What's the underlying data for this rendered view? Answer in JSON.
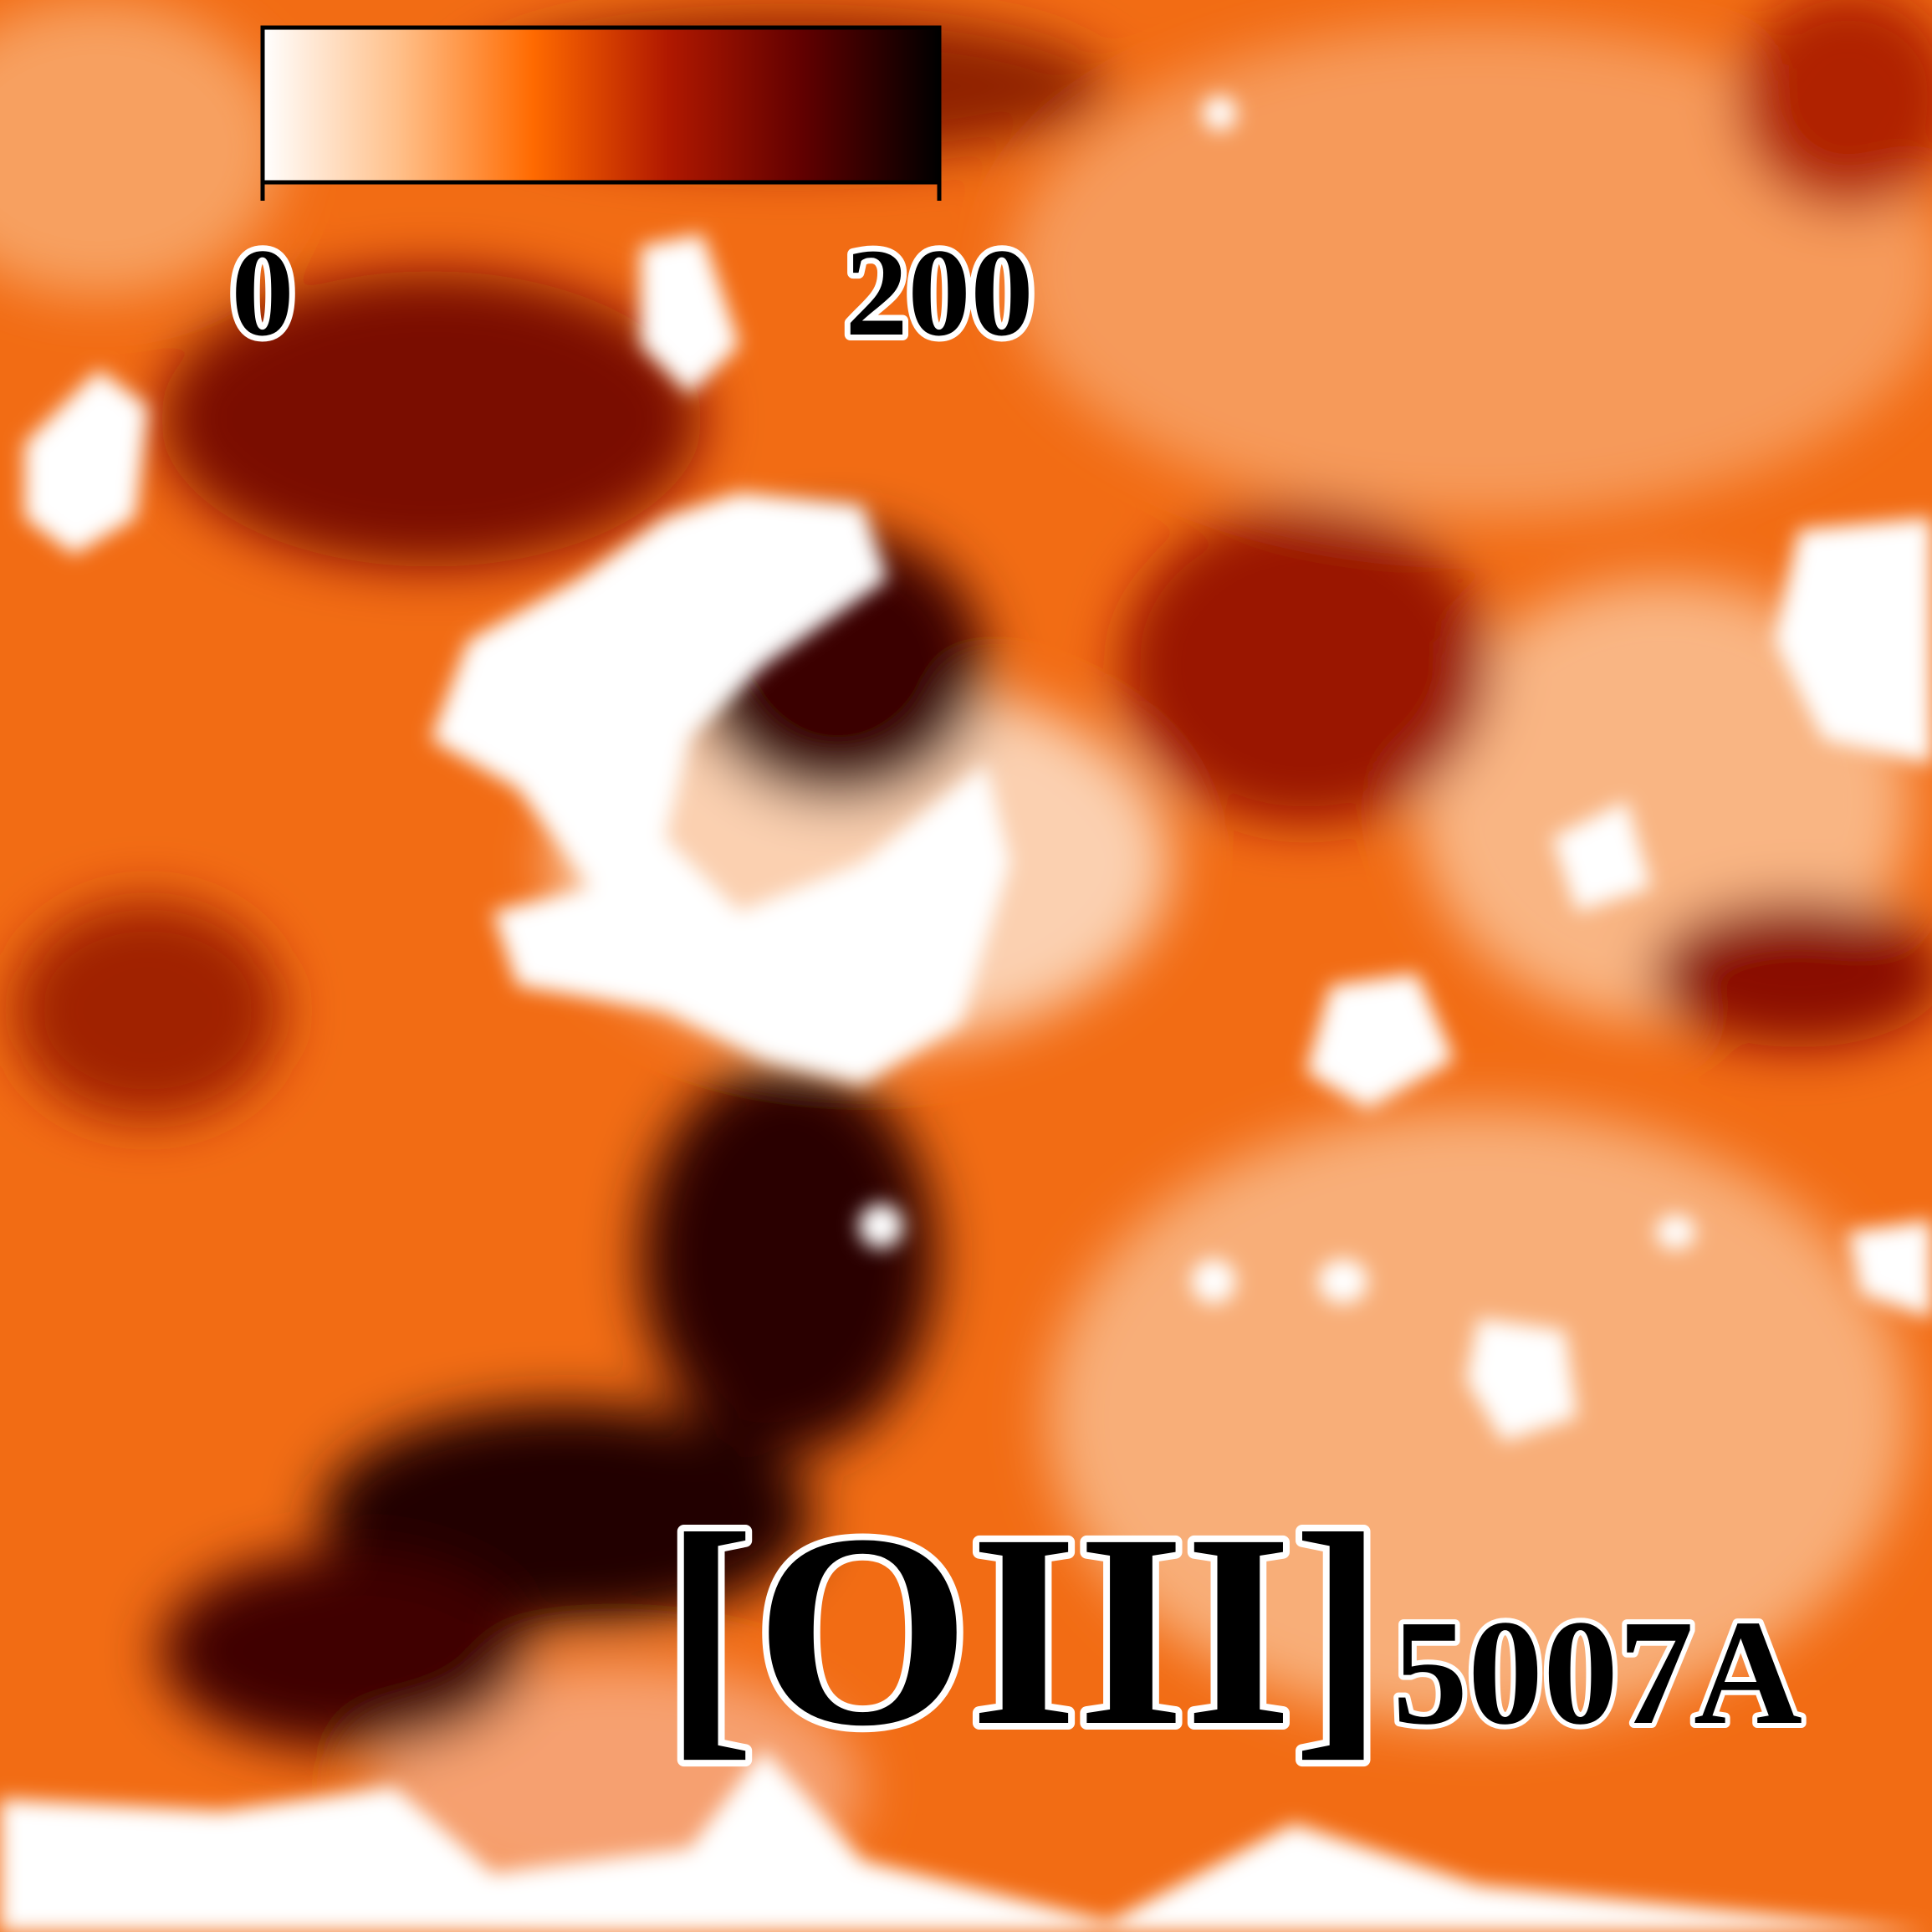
{
  "chart_data": {
    "type": "image",
    "colorbar": {
      "clim": [
        0,
        200
      ],
      "ticks": [
        0,
        200
      ],
      "colors": [
        "#ffffff",
        "#ffc08a",
        "#ff6a00",
        "#b01800",
        "#600000",
        "#000000"
      ]
    },
    "label": "[OIII]",
    "label_subscript": "5007A"
  }
}
